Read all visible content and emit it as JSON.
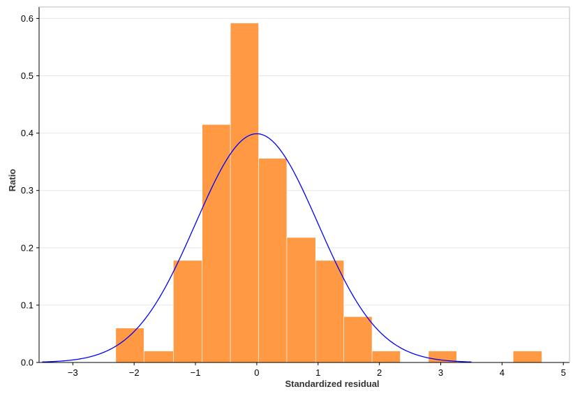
{
  "chart_data": {
    "type": "bar",
    "title": "",
    "xlabel": "Standardized residual",
    "ylabel": "Ratio",
    "xlim": [
      -3.55,
      5.1
    ],
    "ylim": [
      0,
      0.62
    ],
    "xticks": [
      -3,
      -2,
      -1,
      0,
      1,
      2,
      3,
      4,
      5
    ],
    "xtick_labels": [
      "−3",
      "−2",
      "−1",
      "0",
      "1",
      "2",
      "3",
      "4",
      "5"
    ],
    "yticks": [
      0,
      0.1,
      0.2,
      0.3,
      0.4,
      0.5,
      0.6
    ],
    "ytick_labels": [
      "0.0",
      "0.1",
      "0.2",
      "0.3",
      "0.4",
      "0.5",
      "0.6"
    ],
    "grid": "horizontal",
    "legend": "none",
    "bin_edges": [
      -2.3,
      -1.84,
      -1.36,
      -0.89,
      -0.43,
      0.03,
      0.49,
      0.96,
      1.42,
      1.88,
      2.34,
      2.8,
      3.26,
      3.72,
      4.18,
      4.65
    ],
    "values": [
      0.06,
      0.02,
      0.178,
      0.415,
      0.592,
      0.356,
      0.218,
      0.178,
      0.08,
      0.02,
      0,
      0.02,
      0,
      0,
      0.02
    ],
    "bar_color": "#FF9944",
    "bar_edge_color": "#FFFFFF",
    "curve": {
      "type": "normal_pdf",
      "mean": 0,
      "sd": 1,
      "x_range": [
        -3.5,
        3.5
      ],
      "color": "#0000FF"
    }
  }
}
